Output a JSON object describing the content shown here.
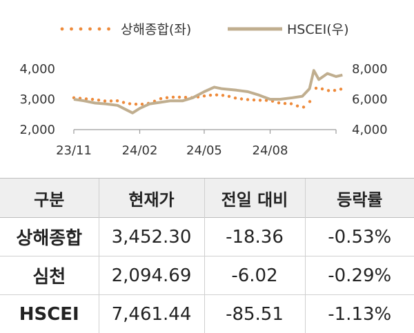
{
  "chart_data": {
    "type": "line",
    "legend": [
      "상해종합(좌)",
      "HSCEI(우)"
    ],
    "legend_position": "top",
    "x_tick_labels": [
      "23/11",
      "24/02",
      "24/05",
      "24/08"
    ],
    "x_range": [
      "2023-11",
      "2024-11"
    ],
    "y_left": {
      "ticks": [
        "4,000",
        "3,000",
        "2,000"
      ],
      "range": [
        2000,
        4000
      ]
    },
    "y_right": {
      "ticks": [
        "8,000",
        "6,000",
        "4,000"
      ],
      "range": [
        4000,
        8000
      ]
    },
    "grid": false,
    "series": [
      {
        "name": "상해종합(좌)",
        "axis": "left",
        "style": "dotted",
        "color": "#ee8a3a",
        "x": [
          "2023-11-01",
          "2023-11-15",
          "2023-12-01",
          "2023-12-15",
          "2024-01-01",
          "2024-01-15",
          "2024-02-01",
          "2024-02-15",
          "2024-03-01",
          "2024-03-15",
          "2024-04-01",
          "2024-04-15",
          "2024-05-01",
          "2024-05-15",
          "2024-06-01",
          "2024-06-15",
          "2024-07-01",
          "2024-07-15",
          "2024-08-01",
          "2024-08-15",
          "2024-09-01",
          "2024-09-15",
          "2024-09-25",
          "2024-10-01",
          "2024-10-08",
          "2024-10-15",
          "2024-10-25",
          "2024-11-01",
          "2024-11-10"
        ],
        "values": [
          3050,
          3020,
          2990,
          2940,
          2950,
          2860,
          2830,
          2870,
          3020,
          3070,
          3070,
          3050,
          3110,
          3150,
          3120,
          3030,
          2990,
          2970,
          2960,
          2870,
          2850,
          2710,
          2900,
          3270,
          3490,
          3270,
          3300,
          3290,
          3350
        ]
      },
      {
        "name": "HSCEI(우)",
        "axis": "right",
        "style": "solid",
        "color": "#c0ae8f",
        "x": [
          "2023-11-01",
          "2023-11-15",
          "2023-12-01",
          "2023-12-15",
          "2024-01-01",
          "2024-01-22",
          "2024-02-01",
          "2024-02-15",
          "2024-03-01",
          "2024-03-15",
          "2024-04-01",
          "2024-04-15",
          "2024-05-01",
          "2024-05-15",
          "2024-05-25",
          "2024-06-15",
          "2024-07-01",
          "2024-07-15",
          "2024-08-01",
          "2024-08-15",
          "2024-09-01",
          "2024-09-15",
          "2024-09-25",
          "2024-10-01",
          "2024-10-08",
          "2024-10-20",
          "2024-11-01",
          "2024-11-10"
        ],
        "values": [
          6000,
          5900,
          5750,
          5700,
          5600,
          5100,
          5400,
          5700,
          5800,
          5900,
          5900,
          6100,
          6500,
          6800,
          6700,
          6600,
          6500,
          6300,
          6000,
          6000,
          6100,
          6200,
          6700,
          7900,
          7300,
          7700,
          7500,
          7600
        ]
      }
    ]
  },
  "table": {
    "headers": [
      "구분",
      "현재가",
      "전일 대비",
      "등락률"
    ],
    "rows": [
      [
        "상해종합",
        "3,452.30",
        "-18.36",
        "-0.53%"
      ],
      [
        "심천",
        "2,094.69",
        "-6.02",
        "-0.29%"
      ],
      [
        "HSCEI",
        "7,461.44",
        "-85.51",
        "-1.13%"
      ]
    ]
  }
}
